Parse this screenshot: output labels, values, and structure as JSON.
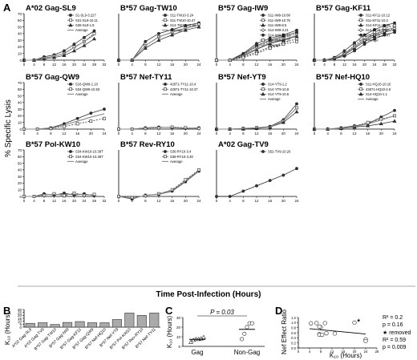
{
  "panel_a": {
    "letter": "A",
    "ylabel": "% Specific Lysis",
    "xlabel": "Time Post-Infection (Hours)",
    "x_ticks": [
      "0",
      "4",
      "8",
      "12",
      "16",
      "20",
      "24"
    ],
    "x_ticks_long": [
      "0",
      "4",
      "8",
      "12",
      "16",
      "20",
      "24",
      "28",
      "32"
    ],
    "y_ticks": [
      "0",
      "10",
      "20",
      "30",
      "40",
      "50",
      "60",
      "70"
    ],
    "subplots": [
      {
        "title": "A*02 Gag-SL9",
        "legend": [
          "S1-SL9-3.227",
          "S31-SL9-10.11",
          "S36-SL9-1.9",
          "Average"
        ],
        "series": [
          [
            0,
            0,
            5,
            8,
            14,
            24,
            34,
            44
          ],
          [
            0,
            0,
            3,
            6,
            10,
            20,
            28,
            40
          ],
          [
            0,
            0,
            2,
            4,
            7,
            14,
            22,
            32
          ],
          [
            0,
            0,
            3,
            6,
            10,
            19,
            28,
            38
          ]
        ]
      },
      {
        "title": "B*57 Gag-TW10",
        "legend": [
          "S11-TW10-3.24",
          "S11-TW10-10.47",
          "S14-TW10-10.36",
          "Average"
        ],
        "series": [
          [
            0,
            0,
            28,
            40,
            46,
            52,
            56
          ],
          [
            0,
            0,
            22,
            35,
            42,
            48,
            54
          ],
          [
            0,
            0,
            18,
            30,
            38,
            45,
            50
          ],
          [
            0,
            0,
            22,
            35,
            42,
            48,
            53
          ]
        ]
      },
      {
        "title": "B*57 Gag-IW9",
        "legend": [
          "S11-IW9-10.68",
          "S11-IW9-10.75",
          "S11-IW9-8.5",
          "S14-IW9-3.21",
          "S14-IW9-10.15",
          "S14-IW9-10.37",
          "Average"
        ],
        "series": [
          [
            0,
            0,
            10,
            25,
            33,
            38,
            45
          ],
          [
            0,
            0,
            8,
            20,
            28,
            34,
            40
          ],
          [
            0,
            0,
            6,
            16,
            25,
            30,
            36
          ],
          [
            0,
            0,
            5,
            12,
            20,
            26,
            32
          ],
          [
            0,
            0,
            9,
            22,
            30,
            36,
            42
          ],
          [
            0,
            0,
            4,
            10,
            18,
            24,
            28
          ],
          [
            0,
            0,
            7,
            17,
            26,
            31,
            37
          ]
        ]
      },
      {
        "title": "B*57 Gag-KF11",
        "legend": [
          "S11-KF11-10.12",
          "S11-KF11-10.2",
          "S14-KF11-10.36",
          "S14-KF11-3.22",
          "S14-KF11-10.47",
          "Average"
        ],
        "series": [
          [
            0,
            0,
            4,
            14,
            26,
            38,
            46,
            52,
            56
          ],
          [
            0,
            0,
            3,
            10,
            22,
            34,
            42,
            48,
            52
          ],
          [
            0,
            0,
            2,
            8,
            18,
            28,
            36,
            42,
            46
          ],
          [
            0,
            0,
            3,
            9,
            20,
            30,
            38,
            44,
            48
          ],
          [
            0,
            0,
            2,
            6,
            14,
            24,
            32,
            38,
            42
          ],
          [
            0,
            0,
            3,
            9,
            20,
            31,
            39,
            45,
            49
          ]
        ]
      },
      {
        "title": "B*57 Gag-QW9",
        "legend": [
          "S16-QW9-1.10",
          "S34-QW9-10.53",
          "Average"
        ],
        "series": [
          [
            0,
            0,
            2,
            8,
            16,
            24,
            30
          ],
          [
            0,
            0,
            1,
            4,
            8,
            12,
            16
          ],
          [
            0,
            0,
            1.5,
            6,
            12,
            18,
            23
          ]
        ]
      },
      {
        "title": "B*57 Nef-TY11",
        "legend": [
          "42871-TY11-10.4",
          "42871-TY11-10.37",
          "Average"
        ],
        "series": [
          [
            0,
            0,
            2,
            3,
            2,
            1,
            2
          ],
          [
            0,
            0,
            1,
            2,
            3,
            2,
            1
          ],
          [
            0,
            0,
            1.5,
            2.5,
            2.5,
            1.5,
            1.5
          ]
        ]
      },
      {
        "title": "B*57 Nef-YT9",
        "legend": [
          "S14-YT9-1.2",
          "S14-YT9-10.8",
          "S14-YT9-10.6",
          "Average"
        ],
        "series": [
          [
            0,
            0,
            1,
            2,
            4,
            14,
            38
          ],
          [
            0,
            0,
            1,
            2,
            3,
            12,
            32
          ],
          [
            0,
            0,
            0,
            1,
            3,
            10,
            26
          ],
          [
            0,
            0,
            1,
            2,
            3,
            12,
            32
          ]
        ]
      },
      {
        "title": "B*57 Nef-HQ10",
        "legend": [
          "S11-HQ10-10.10",
          "42871-HQ10-2.6",
          "S14-HQ10-1.1",
          "Average"
        ],
        "series": [
          [
            0,
            0,
            2,
            5,
            8,
            18,
            28
          ],
          [
            0,
            0,
            1,
            4,
            10,
            15,
            20
          ],
          [
            0,
            0,
            1,
            3,
            5,
            8,
            12
          ],
          [
            0,
            0,
            1.3,
            4,
            7.7,
            13.7,
            20
          ]
        ]
      },
      {
        "title": "B*57 Pol-KW10",
        "legend": [
          "S34-KW10-10.39T",
          "S34-KW10-10.39T",
          "Average"
        ],
        "series": [
          [
            0,
            0,
            4,
            2,
            5,
            2,
            4,
            1
          ],
          [
            0,
            0,
            2,
            4,
            1,
            5,
            2,
            3
          ],
          [
            0,
            0,
            3,
            3,
            3,
            3.5,
            3,
            2
          ]
        ]
      },
      {
        "title": "B*57 Rev-RY10",
        "legend": [
          "S36-RY10-3.4",
          "S36-RY10-3.30",
          "Average"
        ],
        "series": [
          [
            0,
            -4,
            2,
            3,
            8,
            22,
            38
          ],
          [
            0,
            -2,
            1,
            4,
            10,
            25,
            40
          ],
          [
            0,
            -3,
            1.5,
            3.5,
            9,
            23.5,
            39
          ]
        ]
      },
      {
        "title": "A*02 Gag-TV9",
        "legend": [
          "S52-TV9-10.26"
        ],
        "series": [
          [
            0,
            0,
            8,
            16,
            24,
            32,
            42
          ]
        ]
      }
    ]
  },
  "panel_b": {
    "letter": "B",
    "ylabel": "K₁₀ (Hours)",
    "y_ticks": [
      "0",
      "5",
      "10",
      "15",
      "20",
      "25",
      "30"
    ],
    "chart_data": {
      "type": "bar",
      "categories": [
        "A*02 Gag-SL9",
        "A*02 Gag-TV9",
        "B*57 Gag-TW10",
        "B*57 Gag-IW9",
        "B*57 Gag-KF11",
        "B*57 Gag-QW9",
        "B*57 Nef-HQ10",
        "B*57 Nef-YT9",
        "B*57 Pol-KW10",
        "B*57 Rev-RY10",
        "B*57 Nef-TY11"
      ],
      "values": [
        6.5,
        7.5,
        4.5,
        8,
        9.5,
        7.5,
        7.5,
        13,
        24,
        20,
        24
      ],
      "ylim": [
        0,
        30
      ]
    }
  },
  "panel_c": {
    "letter": "C",
    "ylabel": "K₁₀ (Hours)",
    "pvalue": "P = 0.03",
    "y_ticks": [
      "0",
      "10",
      "20",
      "30"
    ],
    "chart_data": {
      "type": "scatter",
      "categories": [
        "Gag",
        "Non-Gag"
      ],
      "groups": [
        {
          "name": "Gag",
          "values": [
            4.5,
            6.5,
            7.5,
            7.5,
            8,
            9.5
          ],
          "mean": 7.3
        },
        {
          "name": "Non-Gag",
          "values": [
            7.5,
            13,
            20,
            24,
            24
          ],
          "mean": 17.7
        }
      ],
      "ylim": [
        0,
        30
      ]
    }
  },
  "panel_d": {
    "letter": "D",
    "ylabel": "Nef Effect Ratio",
    "xlabel": "K₁₀ (Hours)",
    "stats1": [
      "R² = 0.2",
      "p = 0.16"
    ],
    "stats2": [
      "★ removed",
      "R² = 0.59",
      "p = 0.009"
    ],
    "x_ticks": [
      "0",
      "4",
      "8",
      "12",
      "16",
      "20",
      "24",
      "28"
    ],
    "y_ticks": [
      "0.0",
      "0.2",
      "0.4",
      "0.6",
      "0.8",
      "1.0",
      "1.2"
    ],
    "chart_data": {
      "type": "scatter",
      "points": [
        [
          4.5,
          0.97
        ],
        [
          6.5,
          0.98
        ],
        [
          7.5,
          0.54
        ],
        [
          7.5,
          0.52
        ],
        [
          8,
          0.82
        ],
        [
          9.5,
          0.98
        ],
        [
          7.5,
          0.84
        ],
        [
          13,
          0.57
        ],
        [
          10,
          0.58
        ],
        [
          8.5,
          0.52
        ],
        [
          24,
          0.34
        ],
        [
          24,
          0.27
        ],
        [
          20,
          1.0
        ]
      ],
      "removed_point": [
        20,
        1.0
      ],
      "fit_line": [
        [
          4,
          0.76
        ],
        [
          24,
          0.55
        ]
      ],
      "xlim": [
        0,
        28
      ],
      "ylim": [
        0,
        1.2
      ]
    }
  }
}
